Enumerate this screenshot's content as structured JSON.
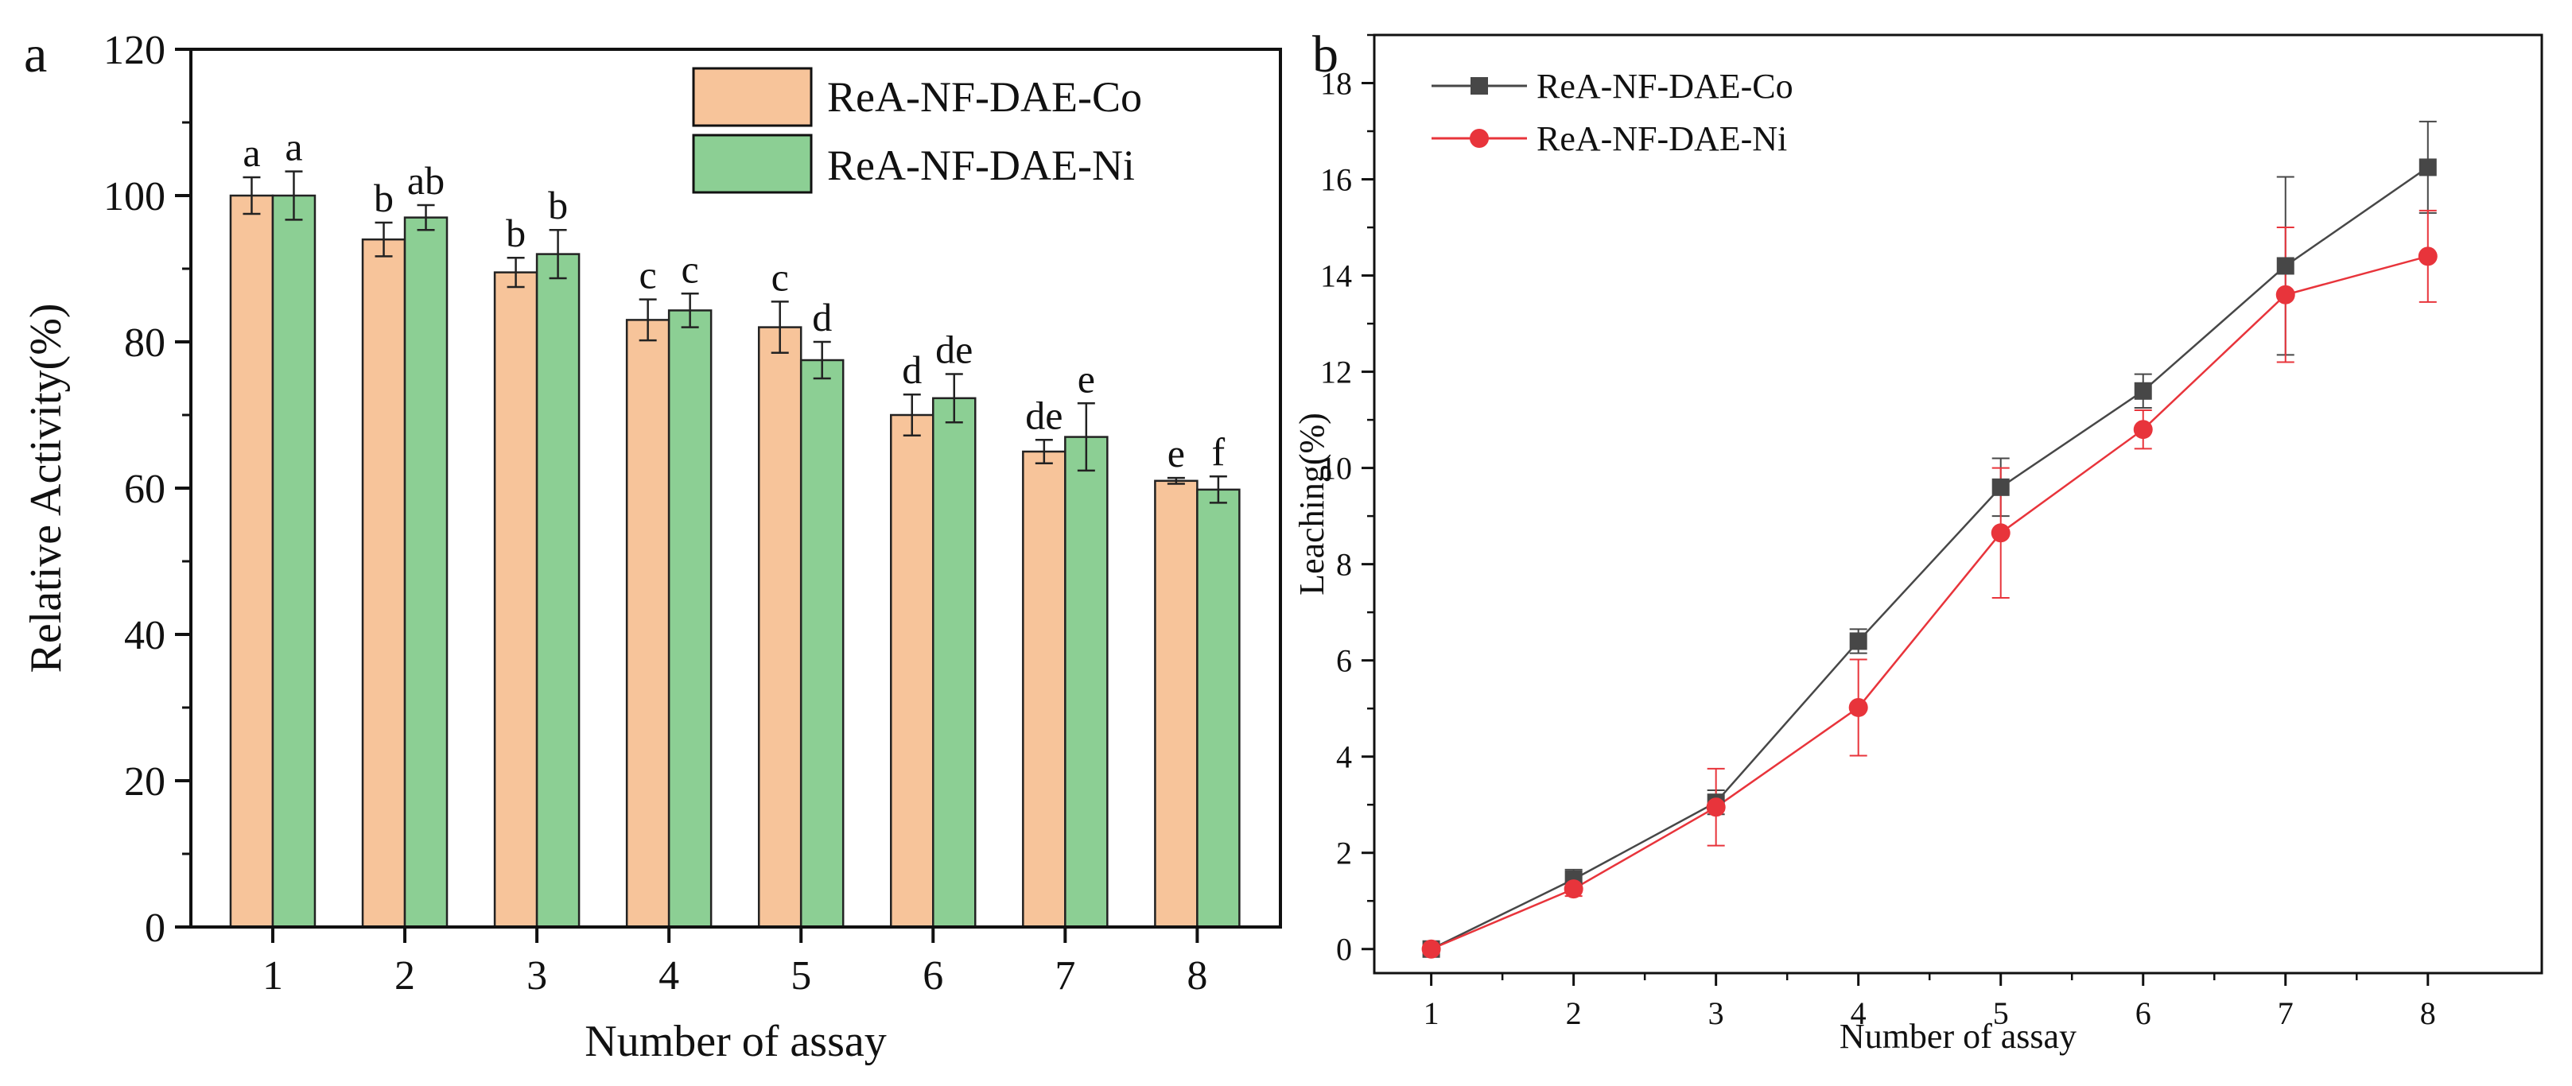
{
  "colors": {
    "co_bar": "#f7c49a",
    "ni_bar": "#8ccf94",
    "co_line": "#474747",
    "ni_line": "#e8343b",
    "axis": "#111111"
  },
  "chart_data": [
    {
      "panel": "a",
      "type": "bar",
      "xlabel": "Number of assay",
      "ylabel": "Relative Activity(%)",
      "ylim": [
        0,
        120
      ],
      "yticks": [
        0,
        20,
        40,
        60,
        80,
        100,
        120
      ],
      "categories": [
        "1",
        "2",
        "3",
        "4",
        "5",
        "6",
        "7",
        "8"
      ],
      "legend_position": "top-right",
      "series": [
        {
          "name": "ReA-NF-DAE-Co",
          "values": [
            100,
            94,
            89.5,
            83,
            82,
            70,
            65,
            61
          ],
          "errors": [
            2.5,
            2.3,
            2.0,
            2.8,
            3.5,
            2.8,
            1.6,
            0.4
          ],
          "labels": [
            "a",
            "b",
            "b",
            "c",
            "c",
            "d",
            "de",
            "e"
          ]
        },
        {
          "name": "ReA-NF-DAE-Ni",
          "values": [
            100,
            97,
            92,
            84.3,
            77.5,
            72.3,
            67,
            59.8
          ],
          "errors": [
            3.3,
            1.7,
            3.3,
            2.3,
            2.5,
            3.3,
            4.6,
            1.8
          ],
          "labels": [
            "a",
            "ab",
            "b",
            "c",
            "d",
            "de",
            "e",
            "f"
          ]
        }
      ]
    },
    {
      "panel": "b",
      "type": "line",
      "xlabel": "Number of assay",
      "ylabel": "Leaching(%)",
      "xlim": [
        0.6,
        8.8
      ],
      "ylim": [
        -0.5,
        19
      ],
      "x": [
        1,
        2,
        3,
        4,
        5,
        6,
        7,
        8
      ],
      "xticks": [
        1,
        2,
        3,
        4,
        5,
        6,
        7,
        8
      ],
      "yticks": [
        0,
        2,
        4,
        6,
        8,
        10,
        12,
        14,
        16,
        18
      ],
      "legend_position": "top-left",
      "series": [
        {
          "name": "ReA-NF-DAE-Co",
          "marker": "square",
          "values": [
            0,
            1.45,
            3.05,
            6.4,
            9.6,
            11.6,
            14.2,
            16.25
          ],
          "errors": [
            0.05,
            0.2,
            0.25,
            0.25,
            0.6,
            0.35,
            1.85,
            0.95
          ]
        },
        {
          "name": "ReA-NF-DAE-Ni",
          "marker": "circle",
          "values": [
            0,
            1.25,
            2.95,
            5.02,
            8.65,
            10.8,
            13.6,
            14.4
          ],
          "errors": [
            0.05,
            0.15,
            0.8,
            1.0,
            1.35,
            0.4,
            1.4,
            0.95
          ]
        }
      ]
    }
  ]
}
